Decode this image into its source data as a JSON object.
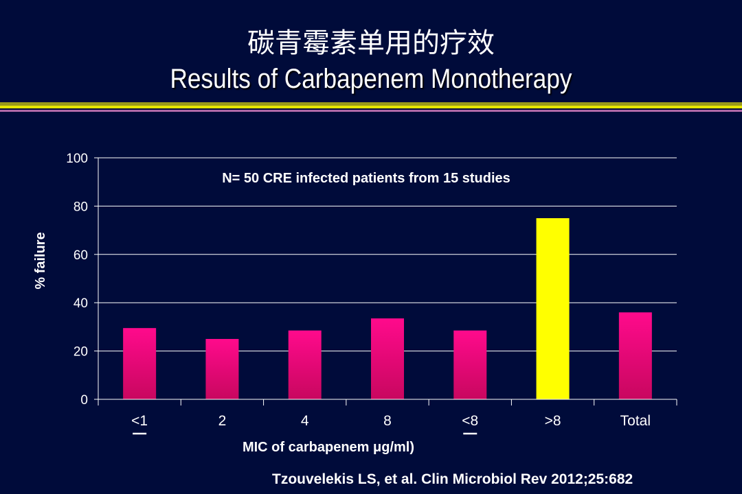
{
  "slide": {
    "title_cn": "碳青霉素单用的疗效",
    "title_en": "Results of Carbapenem Monotherapy",
    "citation": "Tzouvelekis LS, et al. Clin Microbiol Rev 2012;25:682",
    "colors": {
      "background": "#000b3a",
      "bar_magenta": "#ff0a8c",
      "bar_yellow": "#ffff00"
    }
  },
  "chart_data": {
    "type": "bar",
    "annotation": "N= 50 CRE infected patients from 15 studies",
    "categories": [
      "<1",
      "2",
      "4",
      "8",
      "<8",
      ">8",
      "Total"
    ],
    "values": [
      29.5,
      25,
      28.5,
      33.5,
      28.5,
      75,
      36
    ],
    "bar_colors": [
      "#ff0a8c",
      "#ff0a8c",
      "#ff0a8c",
      "#ff0a8c",
      "#ff0a8c",
      "#ffff00",
      "#ff0a8c"
    ],
    "underlined_categories": [
      "<1",
      "<8"
    ],
    "xlabel": "MIC of carbapenem μg/ml)",
    "ylabel": "% failure",
    "ylim": [
      0,
      100
    ],
    "yticks": [
      0,
      20,
      40,
      60,
      80,
      100
    ],
    "grid": true
  }
}
